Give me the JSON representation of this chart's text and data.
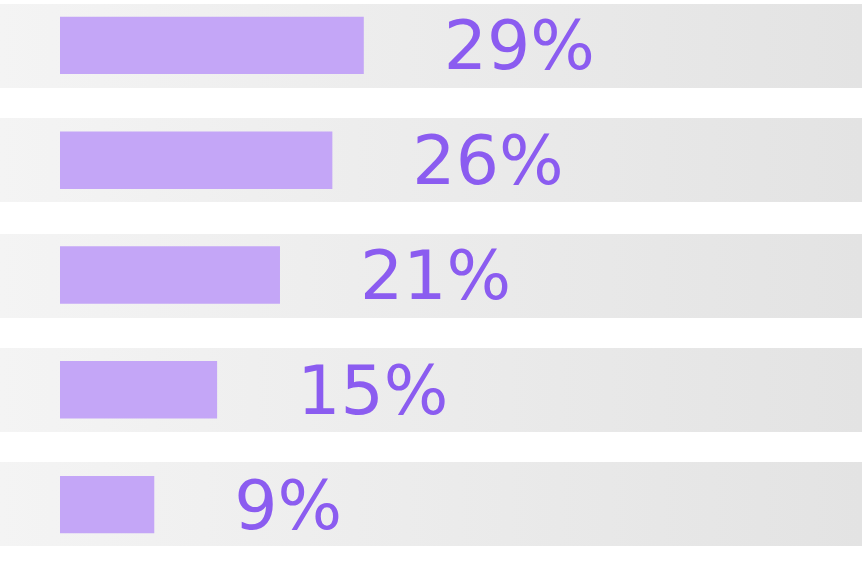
{
  "chart_data": {
    "type": "bar",
    "orientation": "horizontal",
    "categories": [
      null,
      null,
      null,
      null,
      null
    ],
    "values": [
      29,
      26,
      21,
      15,
      9
    ],
    "color": "#c4a6f7",
    "value_labels": [
      "29%",
      "26%",
      "21%",
      "15%",
      "9%"
    ]
  }
}
